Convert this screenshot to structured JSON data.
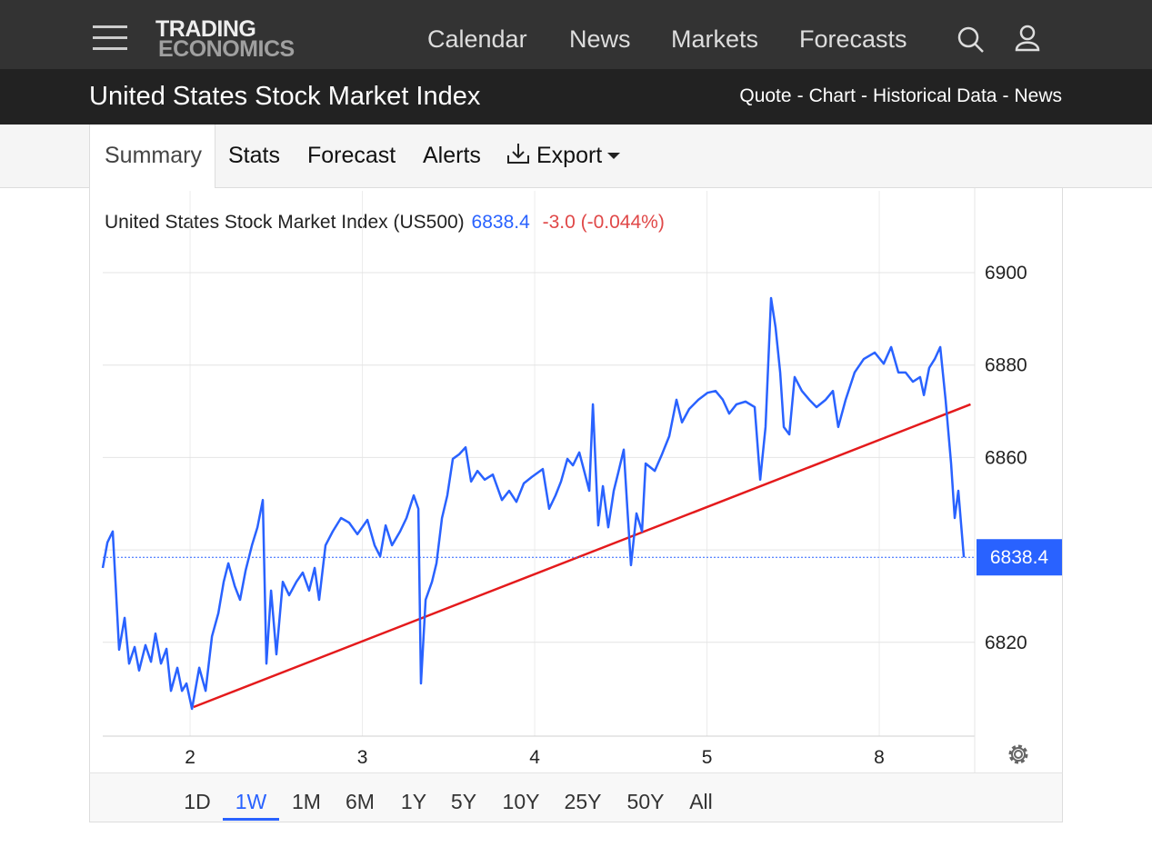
{
  "header": {
    "logo_top": "TRADING",
    "logo_bottom": "ECONOMICS",
    "nav": [
      "Calendar",
      "News",
      "Markets",
      "Forecasts"
    ]
  },
  "subheader": {
    "title": "United States Stock Market Index",
    "links": [
      "Quote",
      "Chart",
      "Historical Data",
      "News"
    ],
    "link_separator": "-"
  },
  "tabs": {
    "items": [
      "Summary",
      "Stats",
      "Forecast",
      "Alerts",
      "Export"
    ],
    "active": "Summary"
  },
  "chart_data": {
    "type": "line",
    "title": "United States Stock Market Index (US500)",
    "price": 6838.4,
    "change_label": "-3.0 (-0.044%)",
    "color": "#2962ff",
    "x": [
      -0.507,
      -0.48,
      -0.449,
      -0.433,
      -0.412,
      -0.38,
      -0.354,
      -0.322,
      -0.296,
      -0.259,
      -0.227,
      -0.201,
      -0.169,
      -0.137,
      -0.111,
      -0.074,
      -0.047,
      -0.021,
      0.011,
      0.053,
      0.09,
      0.127,
      0.164,
      0.195,
      0.222,
      0.259,
      0.29,
      0.322,
      0.359,
      0.391,
      0.422,
      0.443,
      0.47,
      0.501,
      0.538,
      0.575,
      0.617,
      0.654,
      0.691,
      0.723,
      0.749,
      0.786,
      0.828,
      0.876,
      0.923,
      0.971,
      1.029,
      1.071,
      1.103,
      1.135,
      1.172,
      1.219,
      1.256,
      1.298,
      1.325,
      1.34,
      1.367,
      1.404,
      1.43,
      1.462,
      1.493,
      1.525,
      1.562,
      1.599,
      1.631,
      1.668,
      1.71,
      1.757,
      1.81,
      1.852,
      1.894,
      1.937,
      1.984,
      2.047,
      2.084,
      2.121,
      2.153,
      2.19,
      2.222,
      2.259,
      2.29,
      2.317,
      2.338,
      2.369,
      2.396,
      2.427,
      2.459,
      2.485,
      2.517,
      2.538,
      2.559,
      2.591,
      2.623,
      2.644,
      2.697,
      2.739,
      2.781,
      2.823,
      2.855,
      2.897,
      2.95,
      3.003,
      3.05,
      3.092,
      3.129,
      3.171,
      3.224,
      3.277,
      3.309,
      3.34,
      3.372,
      3.398,
      3.425,
      3.446,
      3.478,
      3.509,
      3.551,
      3.594,
      3.636,
      3.689,
      3.731,
      3.762,
      3.805,
      3.857,
      3.91,
      3.974,
      4.026,
      4.069,
      4.111,
      4.153,
      4.195,
      4.237,
      4.259,
      4.29,
      4.322,
      4.354,
      4.385,
      4.417,
      4.438,
      4.459,
      4.491
    ],
    "values": [
      6836.1,
      6841.6,
      6844.0,
      6833.1,
      6818.4,
      6825.3,
      6815.4,
      6819.0,
      6813.9,
      6819.4,
      6815.8,
      6821.9,
      6815.4,
      6818.6,
      6809.5,
      6814.5,
      6809.5,
      6811.1,
      6805.6,
      6814.5,
      6809.5,
      6821.3,
      6826.3,
      6833.1,
      6837.1,
      6832.2,
      6829.2,
      6835.5,
      6841.0,
      6844.9,
      6850.8,
      6815.4,
      6831.2,
      6817.4,
      6833.1,
      6830.2,
      6833.1,
      6835.1,
      6831.2,
      6836.1,
      6829.2,
      6841.0,
      6844.0,
      6846.9,
      6845.9,
      6843.4,
      6846.5,
      6841.0,
      6838.6,
      6845.3,
      6841.0,
      6844.0,
      6846.9,
      6851.8,
      6848.9,
      6811.1,
      6829.2,
      6833.1,
      6837.1,
      6846.9,
      6851.8,
      6859.7,
      6860.7,
      6862.2,
      6854.8,
      6857.1,
      6855.2,
      6856.3,
      6850.8,
      6852.8,
      6850.4,
      6854.4,
      6855.8,
      6857.5,
      6848.9,
      6851.8,
      6854.8,
      6859.7,
      6858.3,
      6861.1,
      6856.7,
      6852.8,
      6871.5,
      6845.3,
      6853.8,
      6844.9,
      6852.8,
      6856.7,
      6861.7,
      6848.9,
      6836.7,
      6847.9,
      6844.0,
      6858.7,
      6857.1,
      6860.7,
      6864.6,
      6872.5,
      6867.6,
      6870.5,
      6872.5,
      6874.0,
      6874.4,
      6872.5,
      6869.5,
      6871.5,
      6872.1,
      6870.9,
      6855.2,
      6866.6,
      6894.5,
      6888.2,
      6878.4,
      6866.6,
      6865.0,
      6877.4,
      6874.4,
      6872.5,
      6870.9,
      6872.5,
      6874.4,
      6866.6,
      6872.5,
      6878.4,
      6881.3,
      6882.7,
      6880.3,
      6883.9,
      6878.4,
      6878.4,
      6876.4,
      6877.4,
      6873.5,
      6879.4,
      6881.3,
      6883.9,
      6872.5,
      6858.7,
      6846.9,
      6852.8,
      6838.4
    ],
    "trendline": {
      "x": [
        0.02,
        4.53
      ],
      "values": [
        6806,
        6871.5
      ],
      "color": "#e41a1c"
    },
    "xlim": [
      -0.507,
      4.554
    ],
    "xticks": [
      {
        "value": 0,
        "label": "2"
      },
      {
        "value": 1,
        "label": "3"
      },
      {
        "value": 2,
        "label": "4"
      },
      {
        "value": 3,
        "label": "5"
      },
      {
        "value": 4,
        "label": "8"
      }
    ],
    "ylim": [
      6800,
      6906
    ],
    "yticks": [
      6820,
      6840,
      6860,
      6880,
      6900
    ],
    "grid": true
  },
  "ranges": {
    "items": [
      "1D",
      "1W",
      "1M",
      "6M",
      "1Y",
      "5Y",
      "10Y",
      "25Y",
      "50Y",
      "All"
    ],
    "active": "1W"
  }
}
